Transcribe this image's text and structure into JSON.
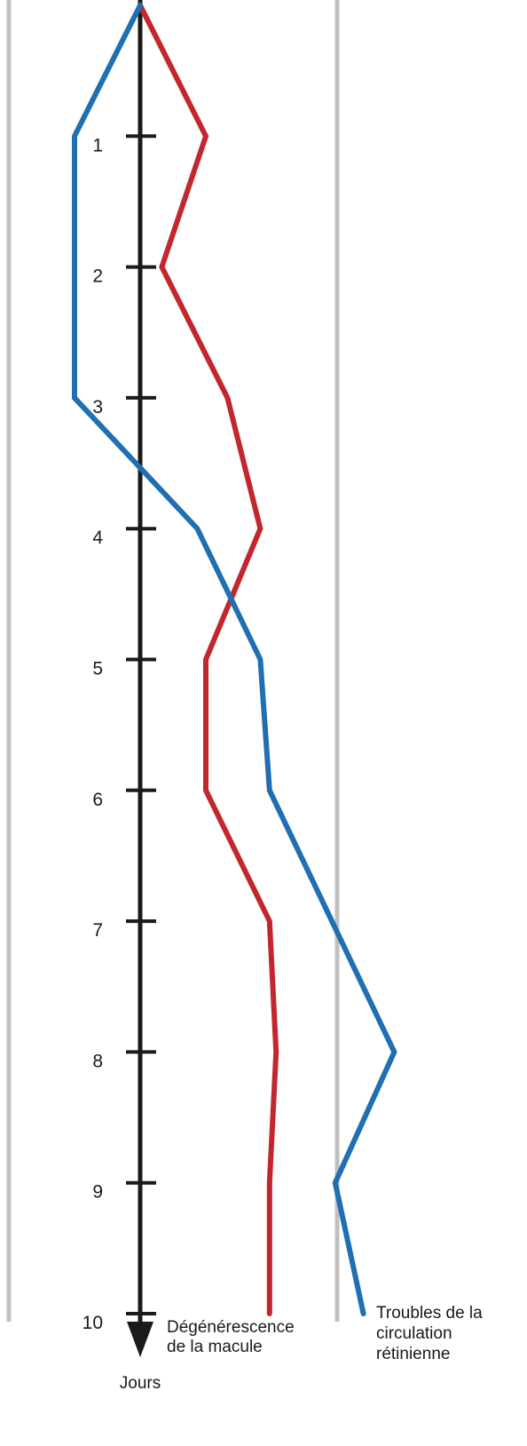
{
  "chart_data": {
    "type": "line",
    "orientation": "vertical",
    "axis_label": "Jours",
    "ylim": [
      0,
      10
    ],
    "ticks": [
      1,
      2,
      3,
      4,
      5,
      6,
      7,
      8,
      9,
      10
    ],
    "tick_labels": [
      "1",
      "2",
      "3",
      "4",
      "5",
      "6",
      "7",
      "8",
      "9",
      "10"
    ],
    "grid": false,
    "colors": {
      "axis": "#1a1a1a",
      "reference_lines": "#c0c0c0",
      "series_red": "#c1272d",
      "series_blue": "#1f6fb2"
    },
    "series": [
      {
        "name": "Dégénérescence de la macule",
        "name_lines": [
          "Dégénérescence",
          "de la macule"
        ],
        "color": "#c1272d",
        "days": [
          0,
          1,
          2,
          3,
          4,
          5,
          6,
          7,
          8,
          9,
          10
        ],
        "offsets": [
          0,
          1,
          0.33,
          1.33,
          1.83,
          1.0,
          1.0,
          1.97,
          2.07,
          1.97,
          1.97
        ]
      },
      {
        "name": "Troubles de la circulation rétinienne",
        "name_lines": [
          "Troubles de la",
          "circulation",
          "rétinienne"
        ],
        "color": "#1f6fb2",
        "days": [
          0,
          1,
          3,
          4,
          5,
          6,
          8,
          9,
          10
        ],
        "offsets": [
          0,
          -1.0,
          -1.0,
          0.87,
          1.83,
          1.97,
          3.87,
          2.97,
          3.4
        ]
      }
    ],
    "reference_lines": [
      -2,
      3
    ]
  }
}
